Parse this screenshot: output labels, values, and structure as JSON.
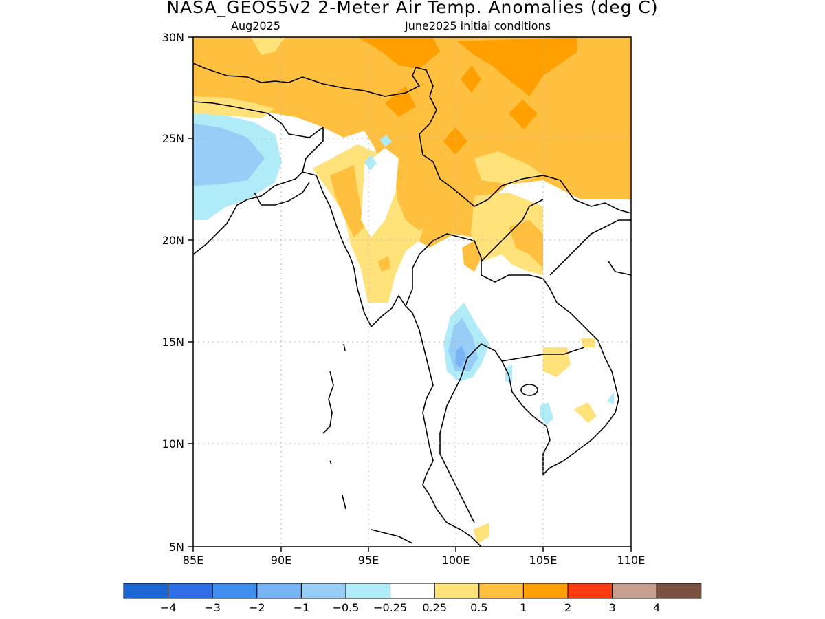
{
  "header": {
    "title": "NASA_GEOS5v2 2-Meter Air Temp. Anomalies (deg C)",
    "valid_month": "Aug2025",
    "init_conditions": "June2025 initial conditions"
  },
  "axes": {
    "lat_labels": [
      "30N",
      "25N",
      "20N",
      "15N",
      "10N",
      "5N"
    ],
    "lon_labels": [
      "85E",
      "90E",
      "95E",
      "100E",
      "105E",
      "110E"
    ]
  },
  "colorbar": {
    "colors": [
      "#1a66d4",
      "#2e6fe8",
      "#3f8ff0",
      "#78b4f6",
      "#98cdf8",
      "#b0ecf8",
      "#ffffff",
      "#ffe27a",
      "#ffbf3f",
      "#ff9f00",
      "#ff3c10",
      "#c8a090",
      "#7a5040"
    ],
    "labels": [
      "−4",
      "−3",
      "−2",
      "−1",
      "−0.5",
      "−0.25",
      "0.25",
      "0.5",
      "1",
      "2",
      "3",
      "4"
    ]
  }
}
